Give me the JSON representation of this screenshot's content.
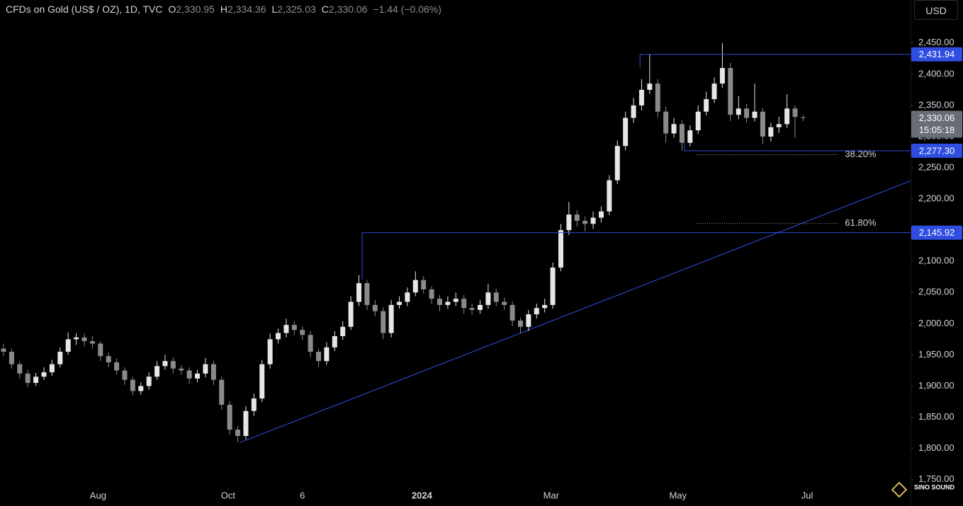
{
  "header": {
    "symbol": "CFDs on Gold (US$ / OZ), 1D, TVC",
    "o_key": "O",
    "o": "2,330.95",
    "h_key": "H",
    "h": "2,334.36",
    "l_key": "L",
    "l": "2,325.03",
    "c_key": "C",
    "c": "2,330.06",
    "change": "−1.44 (−0.06%)"
  },
  "currency_button": "USD",
  "watermark": "SINO SOUND",
  "chart_data": {
    "type": "candlestick",
    "up_color": "#e6e6e6",
    "down_color": "#8a8a8a",
    "line_color": "#2f4de0",
    "ylim": [
      1736,
      2519
    ],
    "xlim": [
      -0.44,
      112.3
    ],
    "yticks": [
      {
        "value": 1750,
        "label": "1,750.00"
      },
      {
        "value": 1800,
        "label": "1,800.00"
      },
      {
        "value": 1850,
        "label": "1,850.00"
      },
      {
        "value": 1900,
        "label": "1,900.00"
      },
      {
        "value": 1950,
        "label": "1,950.00"
      },
      {
        "value": 2000,
        "label": "2,000.00"
      },
      {
        "value": 2050,
        "label": "2,050.00"
      },
      {
        "value": 2100,
        "label": "2,100.00"
      },
      {
        "value": 2150,
        "label": "2,150.00"
      },
      {
        "value": 2200,
        "label": "2,200.00"
      },
      {
        "value": 2250,
        "label": "2,250.00"
      },
      {
        "value": 2300,
        "label": "2,300.00"
      },
      {
        "value": 2350,
        "label": "2,350.00"
      },
      {
        "value": 2400,
        "label": "2,400.00"
      },
      {
        "value": 2450,
        "label": "2,450.00"
      }
    ],
    "xticks": [
      {
        "value": 11.7,
        "label": "Aug"
      },
      {
        "value": 27.8,
        "label": "Oct"
      },
      {
        "value": 37.0,
        "label": "6"
      },
      {
        "value": 51.8,
        "label": "2024",
        "bold": true
      },
      {
        "value": 67.8,
        "label": "Mar"
      },
      {
        "value": 83.5,
        "label": "May"
      },
      {
        "value": 99.5,
        "label": "Jul"
      }
    ],
    "ohlc": [
      [
        1960,
        1968,
        1948,
        1955
      ],
      [
        1955,
        1960,
        1928,
        1935
      ],
      [
        1935,
        1940,
        1912,
        1920
      ],
      [
        1920,
        1926,
        1898,
        1905
      ],
      [
        1905,
        1921,
        1900,
        1915
      ],
      [
        1915,
        1930,
        1910,
        1922
      ],
      [
        1922,
        1942,
        1916,
        1935
      ],
      [
        1935,
        1962,
        1930,
        1955
      ],
      [
        1955,
        1986,
        1950,
        1975
      ],
      [
        1975,
        1985,
        1966,
        1978
      ],
      [
        1978,
        1984,
        1964,
        1972
      ],
      [
        1972,
        1980,
        1960,
        1968
      ],
      [
        1968,
        1972,
        1940,
        1948
      ],
      [
        1948,
        1954,
        1930,
        1938
      ],
      [
        1938,
        1944,
        1918,
        1925
      ],
      [
        1925,
        1930,
        1902,
        1910
      ],
      [
        1910,
        1915,
        1885,
        1892
      ],
      [
        1892,
        1906,
        1886,
        1900
      ],
      [
        1900,
        1922,
        1894,
        1915
      ],
      [
        1915,
        1940,
        1910,
        1932
      ],
      [
        1932,
        1950,
        1926,
        1940
      ],
      [
        1940,
        1946,
        1920,
        1928
      ],
      [
        1928,
        1934,
        1918,
        1925
      ],
      [
        1925,
        1930,
        1904,
        1912
      ],
      [
        1912,
        1926,
        1906,
        1920
      ],
      [
        1920,
        1945,
        1914,
        1935
      ],
      [
        1935,
        1940,
        1902,
        1910
      ],
      [
        1910,
        1915,
        1862,
        1870
      ],
      [
        1870,
        1876,
        1822,
        1830
      ],
      [
        1830,
        1836,
        1810,
        1820
      ],
      [
        1820,
        1868,
        1814,
        1860
      ],
      [
        1860,
        1888,
        1852,
        1880
      ],
      [
        1880,
        1942,
        1874,
        1935
      ],
      [
        1935,
        1984,
        1928,
        1975
      ],
      [
        1975,
        1992,
        1968,
        1985
      ],
      [
        1985,
        2008,
        1978,
        1998
      ],
      [
        1998,
        2004,
        1982,
        1990
      ],
      [
        1990,
        1996,
        1974,
        1982
      ],
      [
        1982,
        1988,
        1946,
        1955
      ],
      [
        1955,
        1960,
        1930,
        1940
      ],
      [
        1940,
        1970,
        1934,
        1962
      ],
      [
        1962,
        1988,
        1956,
        1980
      ],
      [
        1980,
        2004,
        1974,
        1995
      ],
      [
        1995,
        2044,
        1990,
        2035
      ],
      [
        2035,
        2078,
        2028,
        2065
      ],
      [
        2065,
        2070,
        2022,
        2030
      ],
      [
        2030,
        2038,
        2012,
        2020
      ],
      [
        2020,
        2026,
        1975,
        1985
      ],
      [
        1985,
        2038,
        1978,
        2030
      ],
      [
        2030,
        2044,
        2024,
        2035
      ],
      [
        2035,
        2058,
        2028,
        2050
      ],
      [
        2050,
        2084,
        2044,
        2070
      ],
      [
        2070,
        2076,
        2048,
        2055
      ],
      [
        2055,
        2060,
        2032,
        2040
      ],
      [
        2040,
        2046,
        2020,
        2030
      ],
      [
        2030,
        2044,
        2024,
        2035
      ],
      [
        2035,
        2050,
        2028,
        2040
      ],
      [
        2040,
        2046,
        2016,
        2025
      ],
      [
        2025,
        2032,
        2014,
        2022
      ],
      [
        2022,
        2038,
        2016,
        2030
      ],
      [
        2030,
        2064,
        2024,
        2050
      ],
      [
        2050,
        2056,
        2028,
        2035
      ],
      [
        2035,
        2042,
        2022,
        2030
      ],
      [
        2030,
        2036,
        1996,
        2005
      ],
      [
        2005,
        2010,
        1985,
        1995
      ],
      [
        1995,
        2022,
        1988,
        2015
      ],
      [
        2015,
        2032,
        2008,
        2025
      ],
      [
        2025,
        2040,
        2018,
        2030
      ],
      [
        2030,
        2098,
        2024,
        2090
      ],
      [
        2090,
        2160,
        2084,
        2150
      ],
      [
        2150,
        2195,
        2142,
        2175
      ],
      [
        2175,
        2182,
        2156,
        2165
      ],
      [
        2165,
        2172,
        2148,
        2160
      ],
      [
        2160,
        2180,
        2152,
        2170
      ],
      [
        2170,
        2188,
        2162,
        2180
      ],
      [
        2180,
        2238,
        2174,
        2230
      ],
      [
        2230,
        2294,
        2224,
        2285
      ],
      [
        2285,
        2340,
        2278,
        2330
      ],
      [
        2330,
        2362,
        2322,
        2350
      ],
      [
        2350,
        2392,
        2342,
        2375
      ],
      [
        2375,
        2432,
        2368,
        2385
      ],
      [
        2385,
        2392,
        2330,
        2340
      ],
      [
        2340,
        2348,
        2290,
        2305
      ],
      [
        2305,
        2330,
        2298,
        2320
      ],
      [
        2320,
        2326,
        2278,
        2290
      ],
      [
        2290,
        2318,
        2284,
        2310
      ],
      [
        2310,
        2350,
        2304,
        2340
      ],
      [
        2340,
        2372,
        2334,
        2360
      ],
      [
        2360,
        2395,
        2354,
        2385
      ],
      [
        2385,
        2450,
        2378,
        2410
      ],
      [
        2410,
        2418,
        2325,
        2335
      ],
      [
        2335,
        2365,
        2328,
        2345
      ],
      [
        2345,
        2352,
        2322,
        2330
      ],
      [
        2330,
        2385,
        2324,
        2340
      ],
      [
        2340,
        2346,
        2288,
        2300
      ],
      [
        2300,
        2322,
        2292,
        2315
      ],
      [
        2315,
        2332,
        2306,
        2320
      ],
      [
        2320,
        2368,
        2314,
        2345
      ],
      [
        2345,
        2350,
        2298,
        2331.5
      ],
      [
        2330.95,
        2334.36,
        2325.03,
        2330.06
      ]
    ],
    "levels": [
      {
        "value": 2431.94,
        "label": "2,431.94",
        "start": 78.8,
        "stem_to": 2411
      },
      {
        "value": 2277.3,
        "label": "2,277.30",
        "start": 84.3,
        "stem_to": 2292
      },
      {
        "value": 2145.92,
        "label": "2,145.92",
        "start": 44.4,
        "stem_to": 2071
      }
    ],
    "last_price": {
      "value": 2330.06,
      "label": "2,330.06",
      "countdown": "15:05:18"
    },
    "trendline": {
      "start": [
        29.2,
        1809
      ],
      "end": [
        112.3,
        2229
      ]
    },
    "fib_levels": [
      {
        "price": 2271,
        "label": "38.20%",
        "from": 85.8,
        "to": 103.3
      },
      {
        "price": 2160.7,
        "label": "61.80%",
        "from": 85.8,
        "to": 103.3
      }
    ]
  }
}
